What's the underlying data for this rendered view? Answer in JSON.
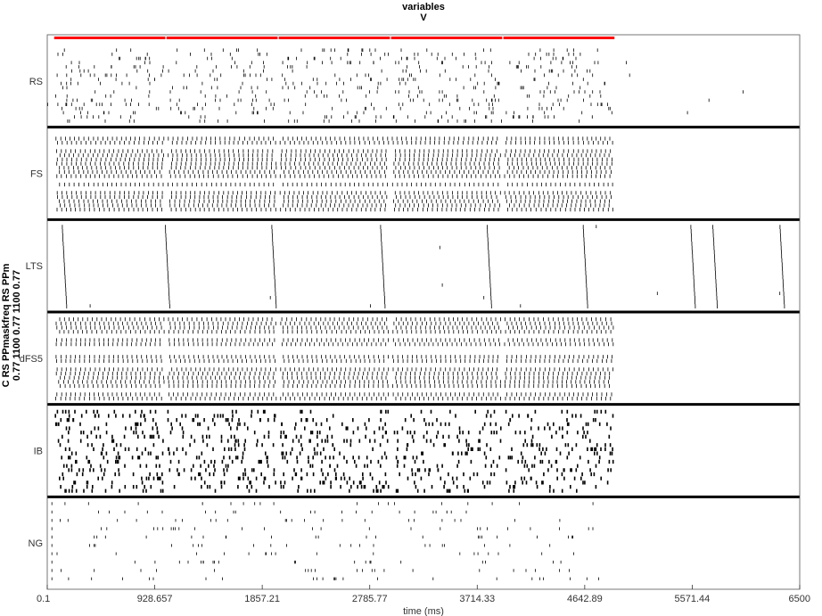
{
  "chart_data": {
    "type": "raster",
    "title_lines": [
      "variables",
      "V"
    ],
    "ylabel_lines": [
      "C RS PPmaskfreq RS PPm",
      "0.77  1100 0.77 1100 0.77"
    ],
    "xlabel": "time (ms)",
    "xlim": [
      0.1,
      6500
    ],
    "xticks": [
      0.1,
      928.657,
      1857.21,
      2785.77,
      3714.33,
      4642.89,
      5571.44,
      6500
    ],
    "xtick_labels": [
      "0.1",
      "928.657",
      "1857.21",
      "2785.77",
      "3714.33",
      "4642.89",
      "5571.44",
      "6500"
    ],
    "panels": [
      "RS",
      "FS",
      "LTS",
      "dFS5",
      "IB",
      "NG"
    ],
    "stimulus_windows_ms": [
      [
        60,
        1040
      ],
      [
        1030,
        2010
      ],
      [
        2000,
        2980
      ],
      [
        2970,
        3950
      ],
      [
        3940,
        4920
      ]
    ],
    "stimulus_color": "#ff0000",
    "spike_color": "#000000",
    "background_color": "#ffffff",
    "grid": false
  }
}
